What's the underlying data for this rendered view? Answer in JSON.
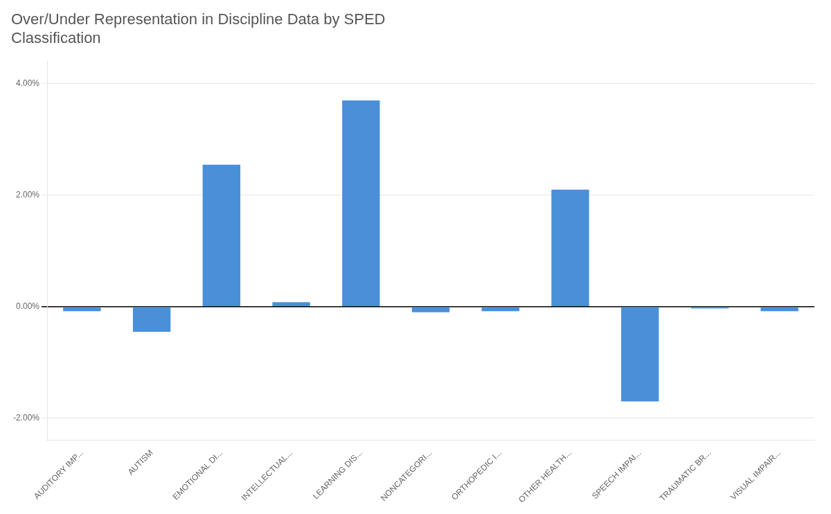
{
  "chart_data": {
    "type": "bar",
    "title": "Over/Under Representation in Discipline Data by SPED\nClassification",
    "categories": [
      "AUDITORY IMP...",
      "AUTISM",
      "EMOTIONAL DI...",
      "INTELLECTUAL...",
      "LEARNING DIS...",
      "NONCATEGORI...",
      "ORTHOPEDIC I...",
      "OTHER HEALTH...",
      "SPEECH IMPAI...",
      "TRAUMATIC BR...",
      "VISUAL IMPAIR..."
    ],
    "values": [
      -0.0008,
      -0.0045,
      0.0255,
      0.0008,
      0.037,
      -0.001,
      -0.0008,
      0.021,
      -0.017,
      -0.0003,
      -0.0008
    ],
    "color": "#4a90d9",
    "ylim": [
      -0.024,
      0.044
    ],
    "yticks": [
      {
        "value": -0.02,
        "label": "-2.00%"
      },
      {
        "value": 0.0,
        "label": "0.00%"
      },
      {
        "value": 0.02,
        "label": "2.00%"
      },
      {
        "value": 0.04,
        "label": "4.00%"
      }
    ],
    "grid": true
  }
}
